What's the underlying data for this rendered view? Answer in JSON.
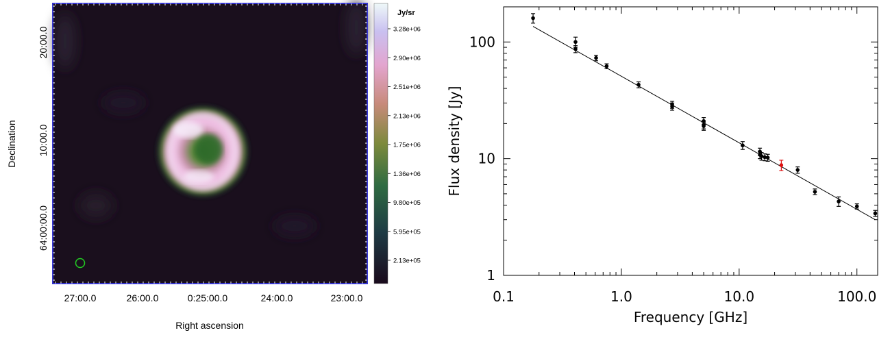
{
  "sky_map": {
    "xlabel": "Right ascension",
    "ylabel": "Declination",
    "x_ticks": [
      "27:00.0",
      "26:00.0",
      "0:25:00.0",
      "24:00.0",
      "23:00.0"
    ],
    "y_ticks": [
      "20:00.0",
      "10:00.0",
      "64:00:00.0"
    ],
    "colorbar_unit": "Jy/sr",
    "colorbar_ticks": [
      "3.28e+06",
      "2.90e+06",
      "2.51e+06",
      "2.13e+06",
      "1.75e+06",
      "1.36e+06",
      "9.80e+05",
      "5.95e+05",
      "2.13e+05"
    ],
    "colors": {
      "frame": "#3333cc",
      "beam": "#22cc22",
      "background": "#1a0f1d"
    }
  },
  "chart_data": {
    "type": "scatter",
    "xlabel": "Frequency [GHz]",
    "ylabel": "Flux density [Jy]",
    "xscale": "log",
    "yscale": "log",
    "xlim": [
      0.1,
      150
    ],
    "ylim": [
      1,
      200
    ],
    "x_tick_labels": [
      "0.1",
      "1.0",
      "10.0",
      "100.0"
    ],
    "y_tick_labels": [
      "1",
      "10",
      "100"
    ],
    "points": [
      {
        "x": 0.178,
        "y": 160,
        "err": 15
      },
      {
        "x": 0.408,
        "y": 100,
        "err": 10
      },
      {
        "x": 0.408,
        "y": 87,
        "err": 6
      },
      {
        "x": 0.61,
        "y": 73,
        "err": 4
      },
      {
        "x": 0.75,
        "y": 62,
        "err": 3
      },
      {
        "x": 1.4,
        "y": 43,
        "err": 2.5
      },
      {
        "x": 2.7,
        "y": 29,
        "err": 2
      },
      {
        "x": 2.7,
        "y": 28,
        "err": 2
      },
      {
        "x": 5.0,
        "y": 21,
        "err": 1.5
      },
      {
        "x": 5.0,
        "y": 19.5,
        "err": 1.5
      },
      {
        "x": 5.0,
        "y": 19,
        "err": 1.5
      },
      {
        "x": 10.7,
        "y": 13,
        "err": 1
      },
      {
        "x": 15.0,
        "y": 11.5,
        "err": 0.8
      },
      {
        "x": 15.0,
        "y": 10.8,
        "err": 0.8
      },
      {
        "x": 15.5,
        "y": 10.5,
        "err": 0.8
      },
      {
        "x": 16.5,
        "y": 10.3,
        "err": 0.7
      },
      {
        "x": 17.5,
        "y": 10.2,
        "err": 0.7
      },
      {
        "x": 22.8,
        "y": 8.8,
        "err": 0.9,
        "highlight": true
      },
      {
        "x": 31.4,
        "y": 8.0,
        "err": 0.5
      },
      {
        "x": 44.0,
        "y": 5.2,
        "err": 0.3
      },
      {
        "x": 70.0,
        "y": 4.3,
        "err": 0.4
      },
      {
        "x": 100.0,
        "y": 3.9,
        "err": 0.2
      },
      {
        "x": 143.0,
        "y": 3.4,
        "err": 0.2
      }
    ],
    "fit_line": [
      {
        "x": 0.178,
        "y": 136
      },
      {
        "x": 143,
        "y": 3.0
      }
    ],
    "colors": {
      "points": "#000000",
      "highlight": "#dd1111",
      "line": "#000000"
    }
  }
}
